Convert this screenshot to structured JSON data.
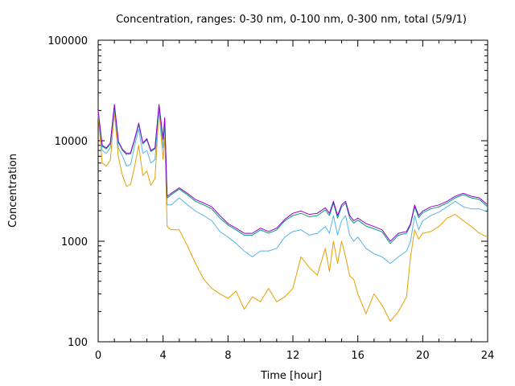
{
  "chart_data": {
    "type": "line",
    "title": "Concentration, ranges: 0-30 nm, 0-100 nm, 0-300 nm, total (5/9/1)",
    "xlabel": "Time [hour]",
    "ylabel": "Concentration",
    "xlim": [
      0,
      24
    ],
    "ylim": [
      100,
      100000
    ],
    "yscale": "log",
    "grid": false,
    "xticks": [
      "0",
      "4",
      "8",
      "12",
      "16",
      "20",
      "24"
    ],
    "yticks": [
      "100",
      "1000",
      "10000",
      "100000"
    ],
    "x": [
      0,
      0.25,
      0.5,
      0.75,
      1,
      1.25,
      1.5,
      1.75,
      2,
      2.25,
      2.5,
      2.75,
      3,
      3.25,
      3.5,
      3.75,
      4,
      4.1,
      4.25,
      4.5,
      5,
      5.5,
      6,
      6.5,
      7,
      7.5,
      8,
      8.5,
      9,
      9.5,
      10,
      10.5,
      11,
      11.5,
      12,
      12.5,
      13,
      13.5,
      14,
      14.25,
      14.5,
      14.75,
      15,
      15.25,
      15.5,
      15.75,
      16,
      16.5,
      17,
      17.5,
      18,
      18.5,
      19,
      19.25,
      19.5,
      19.75,
      20,
      20.5,
      21,
      21.5,
      22,
      22.5,
      23,
      23.5,
      24
    ],
    "series": [
      {
        "color": "#9400d3",
        "values": [
          20000,
          9000,
          8500,
          9500,
          23000,
          9800,
          8200,
          7500,
          7600,
          10500,
          15000,
          9500,
          10500,
          8000,
          8500,
          23000,
          10500,
          17000,
          2800,
          3000,
          3400,
          3000,
          2600,
          2400,
          2200,
          1800,
          1500,
          1350,
          1200,
          1200,
          1350,
          1250,
          1350,
          1650,
          1900,
          2000,
          1850,
          1900,
          2150,
          1900,
          2500,
          1800,
          2300,
          2500,
          1800,
          1600,
          1700,
          1500,
          1400,
          1300,
          1000,
          1200,
          1250,
          1500,
          2300,
          1800,
          2000,
          2200,
          2300,
          2500,
          2800,
          3000,
          2800,
          2700,
          2300
        ]
      },
      {
        "color": "#009e73",
        "values": [
          19500,
          8800,
          8300,
          9300,
          22500,
          9600,
          8000,
          7300,
          7400,
          10200,
          14500,
          9300,
          10200,
          7800,
          8300,
          22500,
          10200,
          16500,
          2700,
          2900,
          3300,
          2900,
          2500,
          2300,
          2100,
          1700,
          1450,
          1300,
          1150,
          1150,
          1300,
          1200,
          1300,
          1600,
          1800,
          1900,
          1750,
          1800,
          2050,
          1800,
          2400,
          1700,
          2200,
          2400,
          1700,
          1520,
          1620,
          1420,
          1330,
          1240,
          950,
          1150,
          1200,
          1450,
          2200,
          1720,
          1920,
          2100,
          2200,
          2400,
          2700,
          2900,
          2700,
          2600,
          2200
        ]
      },
      {
        "color": "#56b4e9",
        "values": [
          19000,
          8000,
          7500,
          8500,
          21000,
          8500,
          7000,
          5600,
          5800,
          9000,
          13000,
          7500,
          8000,
          6000,
          6500,
          21000,
          8500,
          15000,
          2300,
          2300,
          2700,
          2300,
          2000,
          1800,
          1600,
          1250,
          1100,
          950,
          800,
          700,
          800,
          800,
          850,
          1100,
          1250,
          1300,
          1150,
          1200,
          1400,
          1200,
          1800,
          1150,
          1600,
          1800,
          1150,
          1000,
          1100,
          850,
          750,
          700,
          600,
          700,
          800,
          1000,
          1800,
          1300,
          1600,
          1800,
          1950,
          2200,
          2500,
          2200,
          2100,
          2100,
          1950
        ]
      },
      {
        "color": "#e69f00",
        "values": [
          18000,
          6000,
          5600,
          6400,
          19000,
          6800,
          4500,
          3500,
          3700,
          5600,
          9000,
          4500,
          5000,
          3600,
          4200,
          20000,
          6500,
          11000,
          1400,
          1300,
          1300,
          900,
          600,
          420,
          340,
          300,
          270,
          320,
          210,
          280,
          250,
          340,
          250,
          280,
          340,
          700,
          550,
          460,
          850,
          500,
          1000,
          600,
          1000,
          700,
          450,
          420,
          300,
          190,
          300,
          230,
          160,
          200,
          280,
          700,
          1300,
          1050,
          1200,
          1250,
          1400,
          1700,
          1850,
          1600,
          1400,
          1200,
          1100
        ]
      }
    ]
  }
}
